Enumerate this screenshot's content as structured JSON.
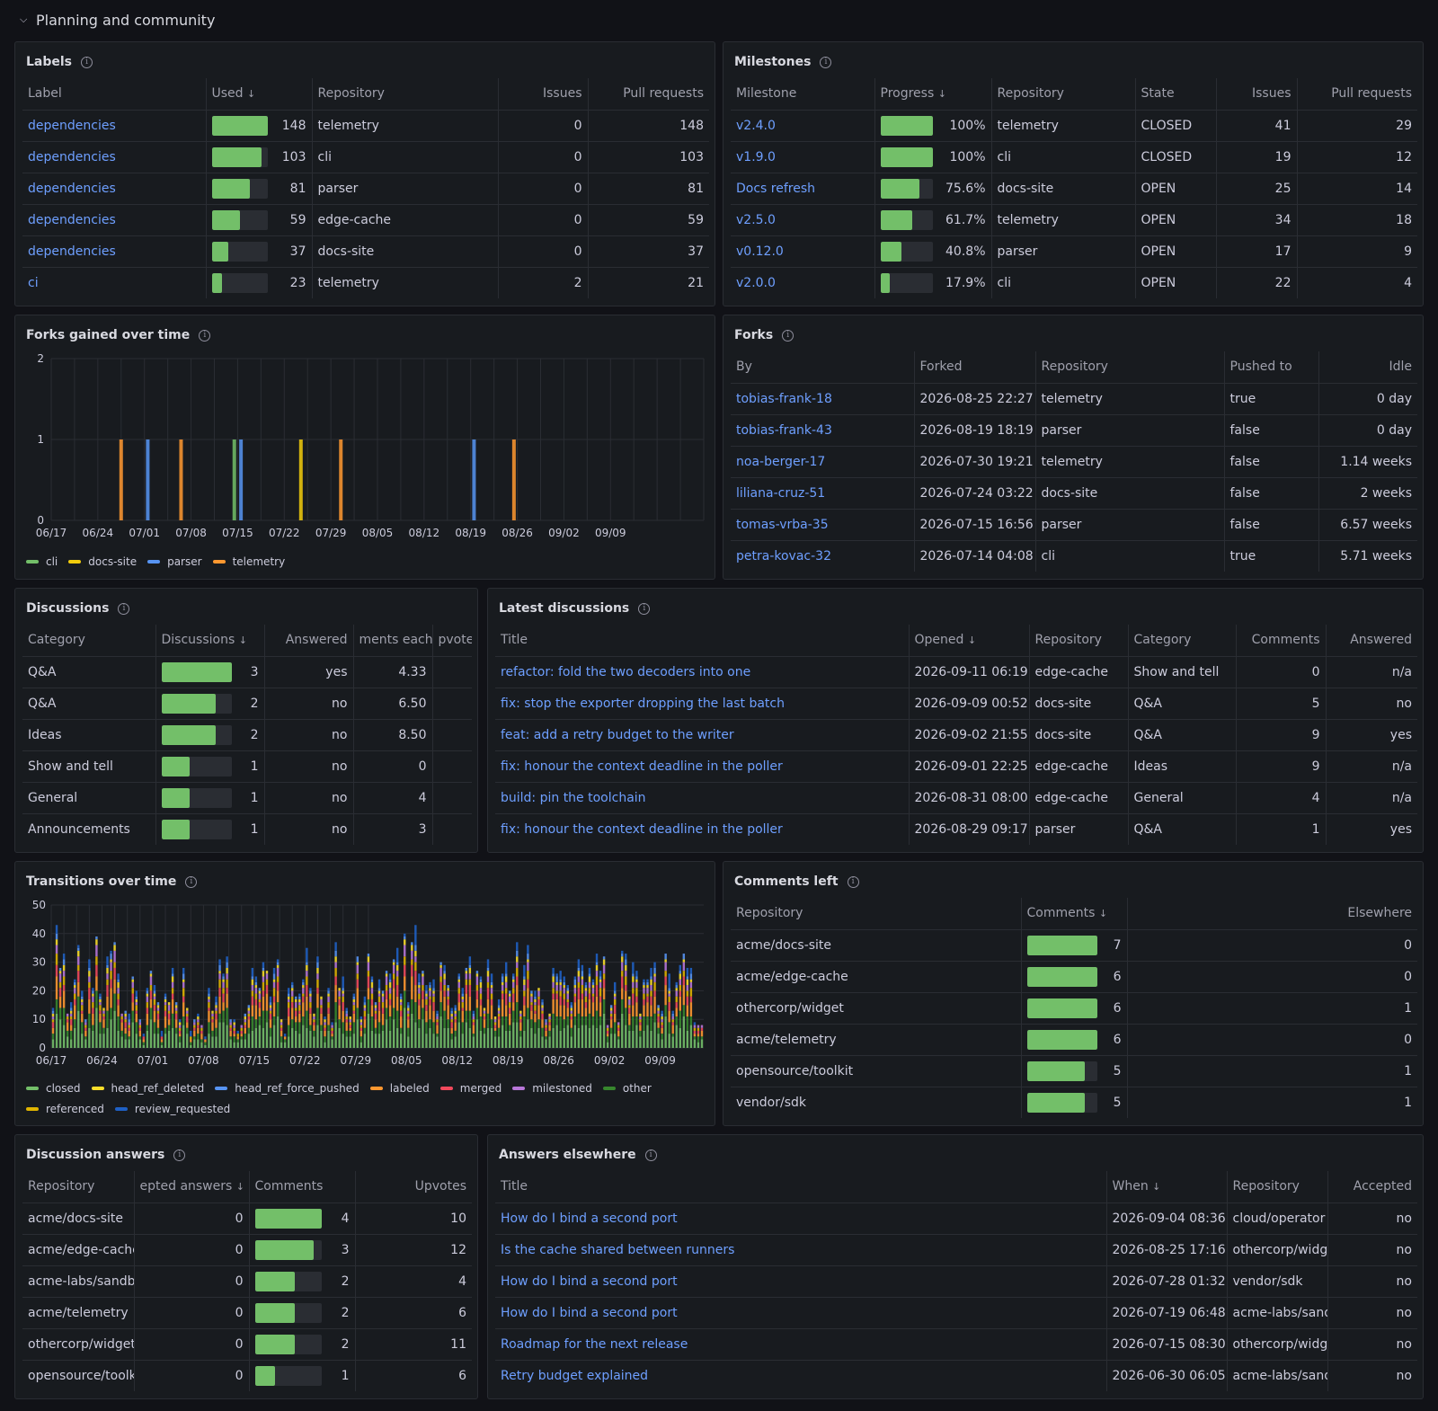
{
  "section": {
    "title": "Planning and community"
  },
  "colors": {
    "cli": "#73bf69",
    "docs_site": "#f2cc0c",
    "parser": "#5794f2",
    "telemetry": "#ff9830",
    "closed": "#73bf69",
    "head_ref_deleted": "#fade2a",
    "head_ref_force_pushed": "#5794f2",
    "labeled": "#ff9830",
    "merged": "#f2495c",
    "milestoned": "#b877d9",
    "other": "#37872d",
    "referenced": "#e0b400",
    "review_requested": "#1f60c4"
  },
  "labels": {
    "title": "Labels",
    "headers": [
      "Label",
      "Used",
      "Repository",
      "Issues",
      "Pull requests"
    ],
    "rows": [
      {
        "label": "dependencies",
        "used": 148,
        "frac": 1.0,
        "repo": "telemetry",
        "issues": "0",
        "prs": "148"
      },
      {
        "label": "dependencies",
        "used": 103,
        "frac": 0.9,
        "repo": "cli",
        "issues": "0",
        "prs": "103"
      },
      {
        "label": "dependencies",
        "used": 81,
        "frac": 0.68,
        "repo": "parser",
        "issues": "0",
        "prs": "81"
      },
      {
        "label": "dependencies",
        "used": 59,
        "frac": 0.5,
        "repo": "edge-cache",
        "issues": "0",
        "prs": "59"
      },
      {
        "label": "dependencies",
        "used": 37,
        "frac": 0.3,
        "repo": "docs-site",
        "issues": "0",
        "prs": "37"
      },
      {
        "label": "ci",
        "used": 23,
        "frac": 0.18,
        "repo": "telemetry",
        "issues": "2",
        "prs": "21"
      }
    ]
  },
  "milestones": {
    "title": "Milestones",
    "headers": [
      "Milestone",
      "Progress",
      "Repository",
      "State",
      "Issues",
      "Pull requests"
    ],
    "rows": [
      {
        "name": "v2.4.0",
        "progress": "100%",
        "frac": 1.0,
        "repo": "telemetry",
        "state": "CLOSED",
        "issues": "41",
        "prs": "29"
      },
      {
        "name": "v1.9.0",
        "progress": "100%",
        "frac": 1.0,
        "repo": "cli",
        "state": "CLOSED",
        "issues": "19",
        "prs": "12"
      },
      {
        "name": "Docs refresh",
        "progress": "75.6%",
        "frac": 0.756,
        "repo": "docs-site",
        "state": "OPEN",
        "issues": "25",
        "prs": "14"
      },
      {
        "name": "v2.5.0",
        "progress": "61.7%",
        "frac": 0.617,
        "repo": "telemetry",
        "state": "OPEN",
        "issues": "34",
        "prs": "18"
      },
      {
        "name": "v0.12.0",
        "progress": "40.8%",
        "frac": 0.408,
        "repo": "parser",
        "state": "OPEN",
        "issues": "17",
        "prs": "9"
      },
      {
        "name": "v2.0.0",
        "progress": "17.9%",
        "frac": 0.179,
        "repo": "cli",
        "state": "OPEN",
        "issues": "22",
        "prs": "4"
      }
    ]
  },
  "forks_chart": {
    "title": "Forks gained over time",
    "legend": [
      "cli",
      "docs-site",
      "parser",
      "telemetry"
    ]
  },
  "forks": {
    "title": "Forks",
    "headers": [
      "By",
      "Forked",
      "Repository",
      "Pushed to",
      "Idle"
    ],
    "rows": [
      {
        "by": "tobias-frank-18",
        "forked": "2026-08-25 22:27",
        "repo": "telemetry",
        "pushed": "true",
        "idle": "0 day"
      },
      {
        "by": "tobias-frank-43",
        "forked": "2026-08-19 18:19",
        "repo": "parser",
        "pushed": "false",
        "idle": "0 day"
      },
      {
        "by": "noa-berger-17",
        "forked": "2026-07-30 19:21",
        "repo": "telemetry",
        "pushed": "false",
        "idle": "1.14 weeks"
      },
      {
        "by": "liliana-cruz-51",
        "forked": "2026-07-24 03:22",
        "repo": "docs-site",
        "pushed": "false",
        "idle": "2 weeks"
      },
      {
        "by": "tomas-vrba-35",
        "forked": "2026-07-15 16:56",
        "repo": "parser",
        "pushed": "false",
        "idle": "6.57 weeks"
      },
      {
        "by": "petra-kovac-32",
        "forked": "2026-07-14 04:08",
        "repo": "cli",
        "pushed": "true",
        "idle": "5.71 weeks"
      }
    ]
  },
  "discussions": {
    "title": "Discussions",
    "headers": [
      "Category",
      "Discussions",
      "Answered",
      "ments each",
      "pvotes"
    ],
    "rows": [
      {
        "cat": "Q&A",
        "count": 3,
        "frac": 1.0,
        "answered": "yes",
        "comments": "4.33"
      },
      {
        "cat": "Q&A",
        "count": 2,
        "frac": 0.78,
        "answered": "no",
        "comments": "6.50"
      },
      {
        "cat": "Ideas",
        "count": 2,
        "frac": 0.78,
        "answered": "no",
        "comments": "8.50"
      },
      {
        "cat": "Show and tell",
        "count": 1,
        "frac": 0.4,
        "answered": "no",
        "comments": "0"
      },
      {
        "cat": "General",
        "count": 1,
        "frac": 0.4,
        "answered": "no",
        "comments": "4"
      },
      {
        "cat": "Announcements",
        "count": 1,
        "frac": 0.4,
        "answered": "no",
        "comments": "3"
      }
    ]
  },
  "latest": {
    "title": "Latest discussions",
    "headers": [
      "Title",
      "Opened",
      "Repository",
      "Category",
      "Comments",
      "Answered"
    ],
    "rows": [
      {
        "title": "refactor: fold the two decoders into one",
        "opened": "2026-09-11 06:19",
        "repo": "edge-cache",
        "cat": "Show and tell",
        "comments": "0",
        "answered": "n/a"
      },
      {
        "title": "fix: stop the exporter dropping the last batch",
        "opened": "2026-09-09 00:52",
        "repo": "docs-site",
        "cat": "Q&A",
        "comments": "5",
        "answered": "no"
      },
      {
        "title": "feat: add a retry budget to the writer",
        "opened": "2026-09-02 21:55",
        "repo": "docs-site",
        "cat": "Q&A",
        "comments": "9",
        "answered": "yes"
      },
      {
        "title": "fix: honour the context deadline in the poller",
        "opened": "2026-09-01 22:25",
        "repo": "edge-cache",
        "cat": "Ideas",
        "comments": "9",
        "answered": "n/a"
      },
      {
        "title": "build: pin the toolchain",
        "opened": "2026-08-31 08:00",
        "repo": "edge-cache",
        "cat": "General",
        "comments": "4",
        "answered": "n/a"
      },
      {
        "title": "fix: honour the context deadline in the poller",
        "opened": "2026-08-29 09:17",
        "repo": "parser",
        "cat": "Q&A",
        "comments": "1",
        "answered": "yes"
      }
    ]
  },
  "transitions_chart": {
    "title": "Transitions over time",
    "legend": [
      "closed",
      "head_ref_deleted",
      "head_ref_force_pushed",
      "labeled",
      "merged",
      "milestoned",
      "other",
      "referenced",
      "review_requested"
    ]
  },
  "comments_left": {
    "title": "Comments left",
    "headers": [
      "Repository",
      "Comments",
      "Elsewhere"
    ],
    "rows": [
      {
        "repo": "acme/docs-site",
        "count": 7,
        "frac": 1.0,
        "elsewhere": "0"
      },
      {
        "repo": "acme/edge-cache",
        "count": 6,
        "frac": 1.0,
        "elsewhere": "0"
      },
      {
        "repo": "othercorp/widget",
        "count": 6,
        "frac": 1.0,
        "elsewhere": "1"
      },
      {
        "repo": "acme/telemetry",
        "count": 6,
        "frac": 1.0,
        "elsewhere": "0"
      },
      {
        "repo": "opensource/toolkit",
        "count": 5,
        "frac": 0.83,
        "elsewhere": "1"
      },
      {
        "repo": "vendor/sdk",
        "count": 5,
        "frac": 0.83,
        "elsewhere": "1"
      }
    ]
  },
  "answers": {
    "title": "Discussion answers",
    "headers": [
      "Repository",
      "epted answers",
      "Comments",
      "Upvotes"
    ],
    "rows": [
      {
        "repo": "acme/docs-site",
        "accepted": "0",
        "count": 4,
        "frac": 1.0,
        "upvotes": "10"
      },
      {
        "repo": "acme/edge-cache",
        "accepted": "0",
        "count": 3,
        "frac": 0.88,
        "upvotes": "12"
      },
      {
        "repo": "acme-labs/sandbox",
        "accepted": "0",
        "count": 2,
        "frac": 0.6,
        "upvotes": "4"
      },
      {
        "repo": "acme/telemetry",
        "accepted": "0",
        "count": 2,
        "frac": 0.6,
        "upvotes": "6"
      },
      {
        "repo": "othercorp/widget",
        "accepted": "0",
        "count": 2,
        "frac": 0.6,
        "upvotes": "11"
      },
      {
        "repo": "opensource/toolkit",
        "accepted": "0",
        "count": 1,
        "frac": 0.3,
        "upvotes": "6"
      }
    ]
  },
  "elsewhere": {
    "title": "Answers elsewhere",
    "headers": [
      "Title",
      "When",
      "Repository",
      "Accepted"
    ],
    "rows": [
      {
        "title": "How do I bind a second port",
        "when": "2026-09-04 08:36",
        "repo": "cloud/operator",
        "accepted": "no"
      },
      {
        "title": "Is the cache shared between runners",
        "when": "2026-08-25 17:16",
        "repo": "othercorp/widget",
        "accepted": "no"
      },
      {
        "title": "How do I bind a second port",
        "when": "2026-07-28 01:32",
        "repo": "vendor/sdk",
        "accepted": "no"
      },
      {
        "title": "How do I bind a second port",
        "when": "2026-07-19 06:48",
        "repo": "acme-labs/sandbox",
        "accepted": "no"
      },
      {
        "title": "Roadmap for the next release",
        "when": "2026-07-15 08:30",
        "repo": "othercorp/widget",
        "accepted": "no"
      },
      {
        "title": "Retry budget explained",
        "when": "2026-06-30 06:05",
        "repo": "acme-labs/sandbox",
        "accepted": "no"
      }
    ]
  },
  "chart_data": [
    {
      "type": "bar",
      "title": "Forks gained over time",
      "x_ticks": [
        "06/17",
        "06/24",
        "07/01",
        "07/08",
        "07/15",
        "07/22",
        "07/29",
        "08/05",
        "08/12",
        "08/19",
        "08/26",
        "09/02",
        "09/09"
      ],
      "ylim": [
        0,
        2
      ],
      "y_ticks": [
        "0",
        "1",
        "2"
      ],
      "legend": "bottom-left",
      "grid": true,
      "series": [
        {
          "name": "cli",
          "points": [
            {
              "x": "2026-07-14",
              "y": 1
            }
          ]
        },
        {
          "name": "docs-site",
          "points": [
            {
              "x": "2026-07-24",
              "y": 1
            }
          ]
        },
        {
          "name": "parser",
          "points": [
            {
              "x": "2026-07-01",
              "y": 1
            },
            {
              "x": "2026-07-15",
              "y": 1
            },
            {
              "x": "2026-08-19",
              "y": 1
            }
          ]
        },
        {
          "name": "telemetry",
          "points": [
            {
              "x": "2026-06-27",
              "y": 1
            },
            {
              "x": "2026-07-06",
              "y": 1
            },
            {
              "x": "2026-07-30",
              "y": 1
            },
            {
              "x": "2026-08-25",
              "y": 1
            }
          ]
        }
      ]
    },
    {
      "type": "bar",
      "stacked": true,
      "title": "Transitions over time",
      "x_ticks": [
        "06/17",
        "06/24",
        "07/01",
        "07/08",
        "07/15",
        "07/22",
        "07/29",
        "08/05",
        "08/12",
        "08/19",
        "08/26",
        "09/02",
        "09/09"
      ],
      "ylim": [
        0,
        50
      ],
      "y_ticks": [
        "0",
        "10",
        "20",
        "30",
        "40",
        "50"
      ],
      "legend": "bottom-left",
      "grid": true,
      "series_names": [
        "closed",
        "head_ref_deleted",
        "head_ref_force_pushed",
        "labeled",
        "merged",
        "milestoned",
        "other",
        "referenced",
        "review_requested"
      ],
      "daily_totals": [
        14,
        43,
        28,
        33,
        12,
        16,
        24,
        36,
        20,
        10,
        31,
        21,
        39,
        19,
        14,
        32,
        34,
        37,
        26,
        12,
        13,
        12,
        25,
        20,
        10,
        5,
        21,
        27,
        22,
        16,
        6,
        19,
        16,
        28,
        16,
        10,
        28,
        14,
        6,
        10,
        12,
        8,
        4,
        21,
        13,
        18,
        31,
        26,
        32,
        10,
        10,
        6,
        8,
        12,
        15,
        28,
        25,
        21,
        30,
        27,
        18,
        28,
        31,
        10,
        5,
        21,
        23,
        18,
        19,
        24,
        35,
        21,
        12,
        32,
        18,
        11,
        21,
        9,
        37,
        21,
        25,
        14,
        11,
        19,
        32,
        11,
        18,
        33,
        25,
        16,
        24,
        20,
        27,
        26,
        31,
        35,
        19,
        40,
        16,
        37,
        43,
        26,
        27,
        22,
        23,
        24,
        13,
        30,
        29,
        22,
        14,
        15,
        26,
        21,
        28,
        32,
        13,
        27,
        25,
        14,
        31,
        26,
        11,
        17,
        26,
        30,
        20,
        26,
        37,
        13,
        29,
        36,
        20,
        20,
        21,
        17,
        10,
        12,
        28,
        26,
        27,
        25,
        22,
        16,
        25,
        31,
        29,
        23,
        28,
        24,
        33,
        27,
        32,
        8,
        15,
        23,
        9,
        34,
        33,
        18,
        30,
        27,
        12,
        24,
        24,
        28,
        30,
        15,
        13,
        33,
        26,
        13,
        23,
        29,
        33,
        28,
        28,
        9,
        8,
        8
      ]
    }
  ]
}
